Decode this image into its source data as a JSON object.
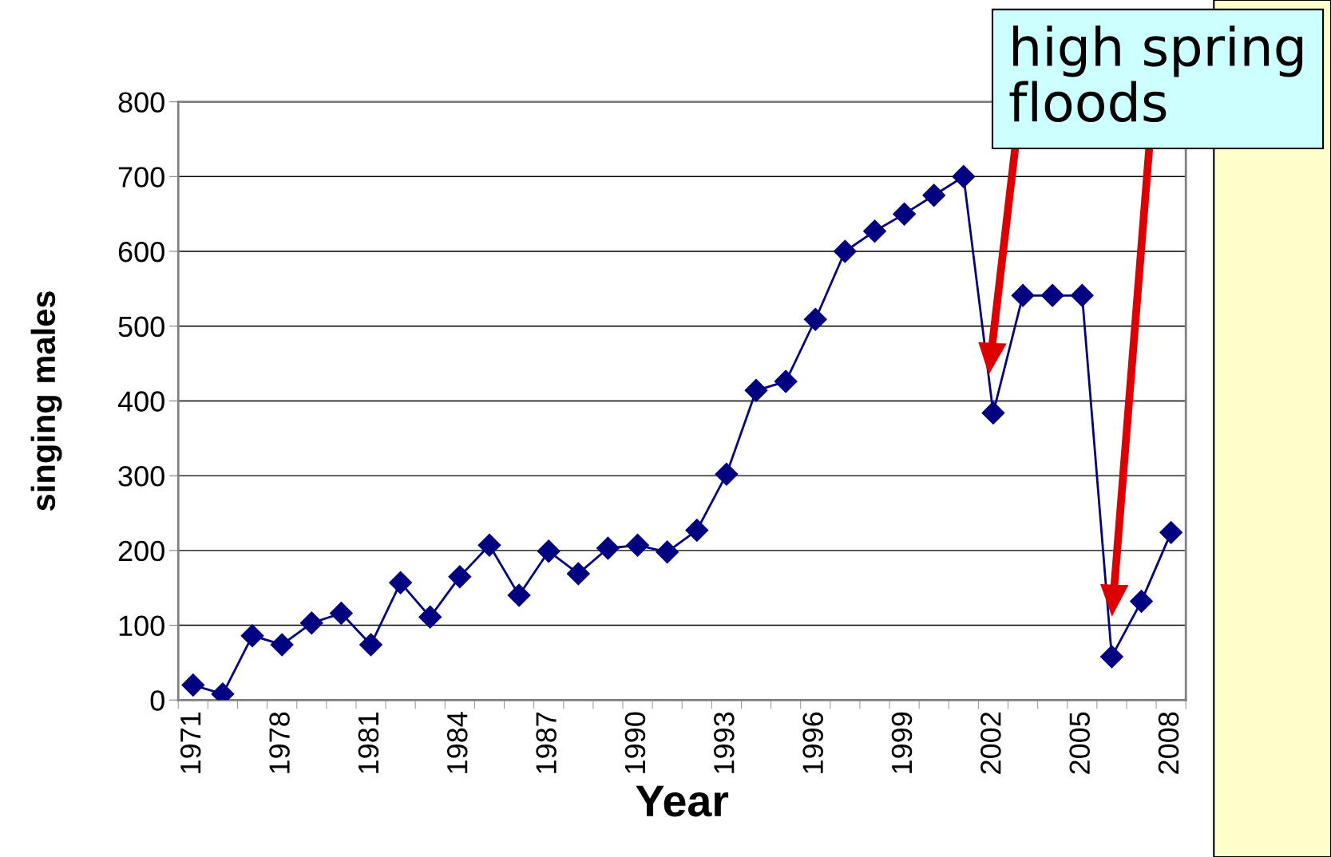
{
  "chart_data": {
    "type": "line",
    "xlabel": "Year",
    "ylabel": "singing males",
    "categories": [
      "1971",
      null,
      null,
      "1978",
      null,
      null,
      "1981",
      null,
      null,
      "1984",
      null,
      null,
      "1987",
      null,
      null,
      "1990",
      null,
      null,
      "1993",
      null,
      null,
      "1996",
      null,
      null,
      "1999",
      null,
      null,
      "2002",
      null,
      null,
      "2005",
      null,
      null,
      "2008"
    ],
    "series": [
      {
        "color": "#000080",
        "values": [
          20,
          8,
          86,
          74,
          103,
          116,
          74,
          157,
          111,
          165,
          207,
          140,
          199,
          169,
          203,
          207,
          198,
          227,
          302,
          414,
          426,
          509,
          600,
          627,
          650,
          675,
          700,
          384,
          541,
          541,
          541,
          58,
          132,
          224
        ]
      }
    ],
    "ylim": [
      0,
      800
    ],
    "yticks": [
      0,
      100,
      200,
      300,
      400,
      500,
      600,
      700,
      800
    ],
    "grid": "y",
    "marker": "diamond",
    "line_style": "solid",
    "annotations": [
      "high spring floods"
    ]
  }
}
